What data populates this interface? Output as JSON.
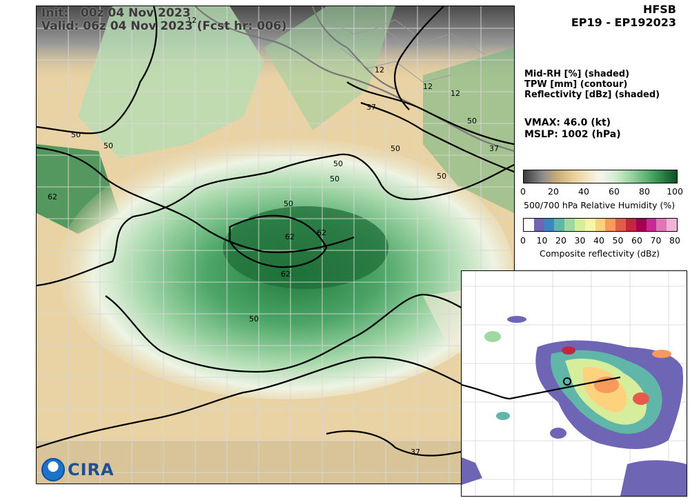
{
  "header": {
    "init_line": "Init:   00z 04 Nov 2023",
    "valid_line": "Valid: 06z 04 Nov 2023 (Fcst hr: 006)",
    "model": "HFSB",
    "storm": "EP19 - EP192023"
  },
  "legend": {
    "line1": "Mid-RH [%] (shaded)",
    "line2": "TPW [mm] (contour)",
    "line3": "Reflectivity [dBz] (shaded)"
  },
  "intensity": {
    "vmax": "VMAX:  46.0 (kt)",
    "mslp": "MSLP: 1002 (hPa)"
  },
  "rh_colorbar": {
    "ticks": [
      "0",
      "20",
      "40",
      "60",
      "80",
      "100"
    ],
    "title": "500/700 hPa Relative Humidity (%)"
  },
  "ref_colorbar": {
    "ticks": [
      "0",
      "10",
      "20",
      "30",
      "40",
      "50",
      "60",
      "70",
      "80"
    ],
    "title": "Composite reflectivity (dBz)",
    "colors": [
      "#ffffff",
      "#6e66b4",
      "#3f86c0",
      "#5fb6a9",
      "#9fd8a0",
      "#d6ee9c",
      "#f4f5a8",
      "#fdd27f",
      "#f79a5b",
      "#e55b4a",
      "#c3263f",
      "#a5004f",
      "#c8289a",
      "#e176b6",
      "#f2b3d8"
    ]
  },
  "contour_labels": [
    "50",
    "50",
    "50",
    "50",
    "50",
    "50",
    "50",
    "50",
    "50",
    "62",
    "62",
    "62",
    "62",
    "37",
    "37",
    "37",
    "12",
    "12",
    "12",
    "12"
  ],
  "logo": {
    "text": "CIRA"
  }
}
